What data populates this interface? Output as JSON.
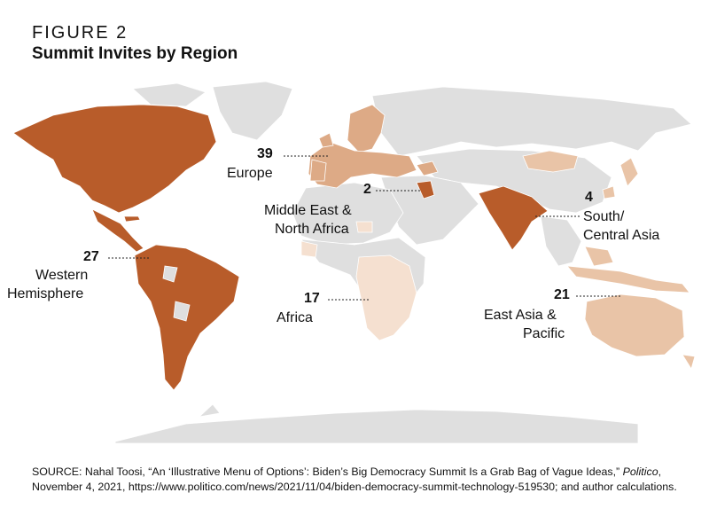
{
  "figure_label": "FIGURE 2",
  "title": "Summit Invites by Region",
  "colors": {
    "no_invite": "#dfdfdf",
    "western_hemisphere": "#b85c2a",
    "south_central_asia": "#b85c2a",
    "europe": "#ddaa86",
    "east_asia_pacific": "#e9c4a7",
    "middle_east_north_africa": "#b85c2a",
    "africa": "#f5e0d0",
    "borders": "#ffffff",
    "leader": "#222222"
  },
  "regions": [
    {
      "id": "western-hemisphere",
      "count": "27",
      "name_lines": [
        "Western",
        "Hemisphere"
      ]
    },
    {
      "id": "europe",
      "count": "39",
      "name_lines": [
        "Europe"
      ]
    },
    {
      "id": "middle-east-north-africa",
      "count": "2",
      "name_lines": [
        "Middle East &",
        "North Africa"
      ]
    },
    {
      "id": "africa",
      "count": "17",
      "name_lines": [
        "Africa"
      ]
    },
    {
      "id": "south-central-asia",
      "count": "4",
      "name_lines": [
        "South/",
        "Central Asia"
      ]
    },
    {
      "id": "east-asia-pacific",
      "count": "21",
      "name_lines": [
        "East Asia &",
        "Pacific"
      ]
    }
  ],
  "source": {
    "prefix": "SOURCE: Nahal Toosi, “An ‘Illustrative Menu of Options’: Biden’s Big Democracy Summit Is a Grab Bag of Vague Ideas,” ",
    "publication": "Politico",
    "suffix": ", November 4, 2021, https://www.politico.com/news/2021/11/04/biden-democracy-summit-technology-519530; and author calculations."
  }
}
